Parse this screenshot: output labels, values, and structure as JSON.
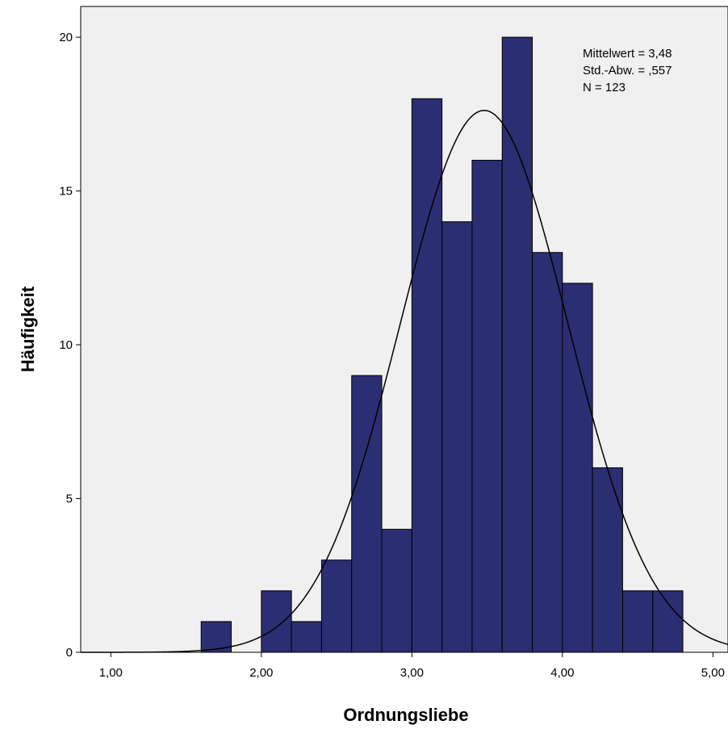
{
  "chart_data": {
    "type": "bar",
    "title": "",
    "xlabel": "Ordnungsliebe",
    "ylabel": "Häufigkeit",
    "x_ticks": [
      "1,00",
      "2,00",
      "3,00",
      "4,00",
      "5,00"
    ],
    "x_tick_values": [
      1,
      2,
      3,
      4,
      5
    ],
    "y_ticks": [
      "0",
      "5",
      "10",
      "15",
      "20"
    ],
    "y_tick_values": [
      0,
      5,
      10,
      15,
      20
    ],
    "xlim": [
      0.8,
      5.1
    ],
    "ylim": [
      0,
      21
    ],
    "bin_width": 0.2,
    "bins": [
      {
        "x0": 1.6,
        "x1": 1.8,
        "count": 1
      },
      {
        "x0": 2.0,
        "x1": 2.2,
        "count": 2
      },
      {
        "x0": 2.2,
        "x1": 2.4,
        "count": 1
      },
      {
        "x0": 2.4,
        "x1": 2.6,
        "count": 3
      },
      {
        "x0": 2.6,
        "x1": 2.8,
        "count": 9
      },
      {
        "x0": 2.8,
        "x1": 3.0,
        "count": 4
      },
      {
        "x0": 3.0,
        "x1": 3.2,
        "count": 18
      },
      {
        "x0": 3.2,
        "x1": 3.4,
        "count": 14
      },
      {
        "x0": 3.4,
        "x1": 3.6,
        "count": 16
      },
      {
        "x0": 3.6,
        "x1": 3.8,
        "count": 20
      },
      {
        "x0": 3.8,
        "x1": 4.0,
        "count": 13
      },
      {
        "x0": 4.0,
        "x1": 4.2,
        "count": 12
      },
      {
        "x0": 4.2,
        "x1": 4.4,
        "count": 6
      },
      {
        "x0": 4.4,
        "x1": 4.6,
        "count": 2
      },
      {
        "x0": 4.6,
        "x1": 4.8,
        "count": 2
      }
    ],
    "normal_curve": {
      "mean": 3.48,
      "sd": 0.557,
      "n": 123
    },
    "stats": [
      "Mittelwert = 3,48",
      "Std.-Abw. = ,557",
      "N = 123"
    ],
    "grid": false,
    "colors": {
      "bar_fill": "#2b2e72",
      "bar_stroke": "#000000",
      "plot_background": "#f0f0f0",
      "curve": "#000000"
    }
  }
}
